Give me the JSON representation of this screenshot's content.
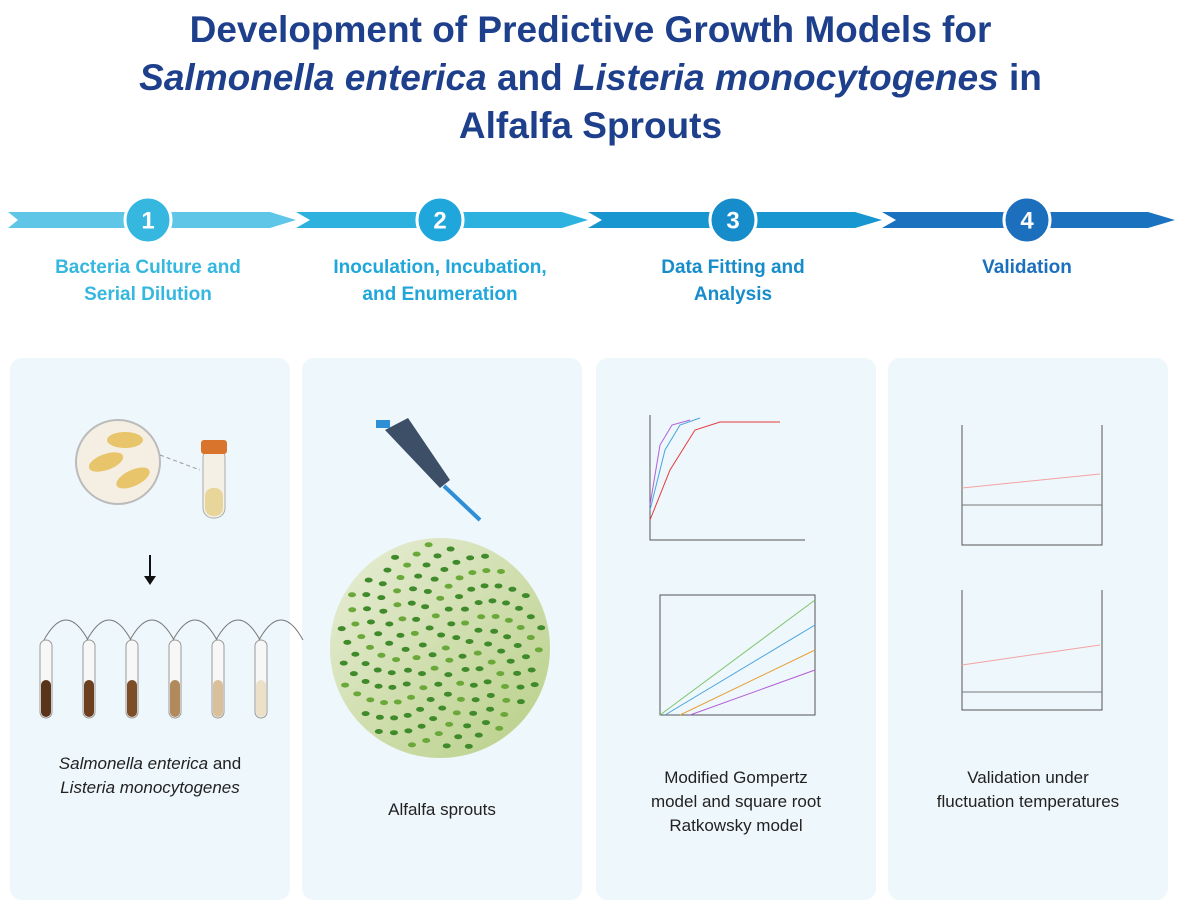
{
  "header": {
    "title_lines": [
      [
        {
          "text": "Development of Predictive Growth Models for",
          "italic": false
        }
      ],
      [
        {
          "text": "Salmonella enterica",
          "italic": true
        },
        {
          "text": "and",
          "italic": false
        },
        {
          "text": "Listeria monocytogenes",
          "italic": true
        },
        {
          "text": "in",
          "italic": false
        }
      ],
      [
        {
          "text": "Alfalfa Sprouts",
          "italic": false
        }
      ]
    ]
  },
  "steps": [
    {
      "number": "1",
      "lines": [
        "Bacteria Culture and",
        "Serial Dilution"
      ],
      "color": "#35b7e0"
    },
    {
      "number": "2",
      "lines": [
        "Inoculation, Incubation,",
        "and Enumeration"
      ],
      "color": "#1fa6da"
    },
    {
      "number": "3",
      "lines": [
        "Data Fitting and",
        "Analysis"
      ],
      "color": "#178ccb"
    },
    {
      "number": "4",
      "lines": [
        "Validation"
      ],
      "color": "#1b6fbd"
    }
  ],
  "panels": [
    {
      "caption_lines": [
        [
          {
            "text": "Salmonella enterica",
            "italic": true
          },
          {
            "text": "and",
            "italic": false
          }
        ],
        [
          {
            "text": "Listeria monocytogenes",
            "italic": true
          }
        ]
      ]
    },
    {
      "caption_lines": [
        [
          {
            "text": "Alfalfa sprouts",
            "italic": false
          }
        ]
      ]
    },
    {
      "caption_lines": [
        [
          {
            "text": "Modified Gompertz",
            "italic": false
          }
        ],
        [
          {
            "text": "model and square root",
            "italic": false
          }
        ],
        [
          {
            "text": "Ratkowsky model",
            "italic": false
          }
        ]
      ]
    },
    {
      "caption_lines": [
        [
          {
            "text": "Validation under",
            "italic": false
          }
        ],
        [
          {
            "text": "fluctuation temperatures",
            "italic": false
          }
        ]
      ]
    }
  ]
}
